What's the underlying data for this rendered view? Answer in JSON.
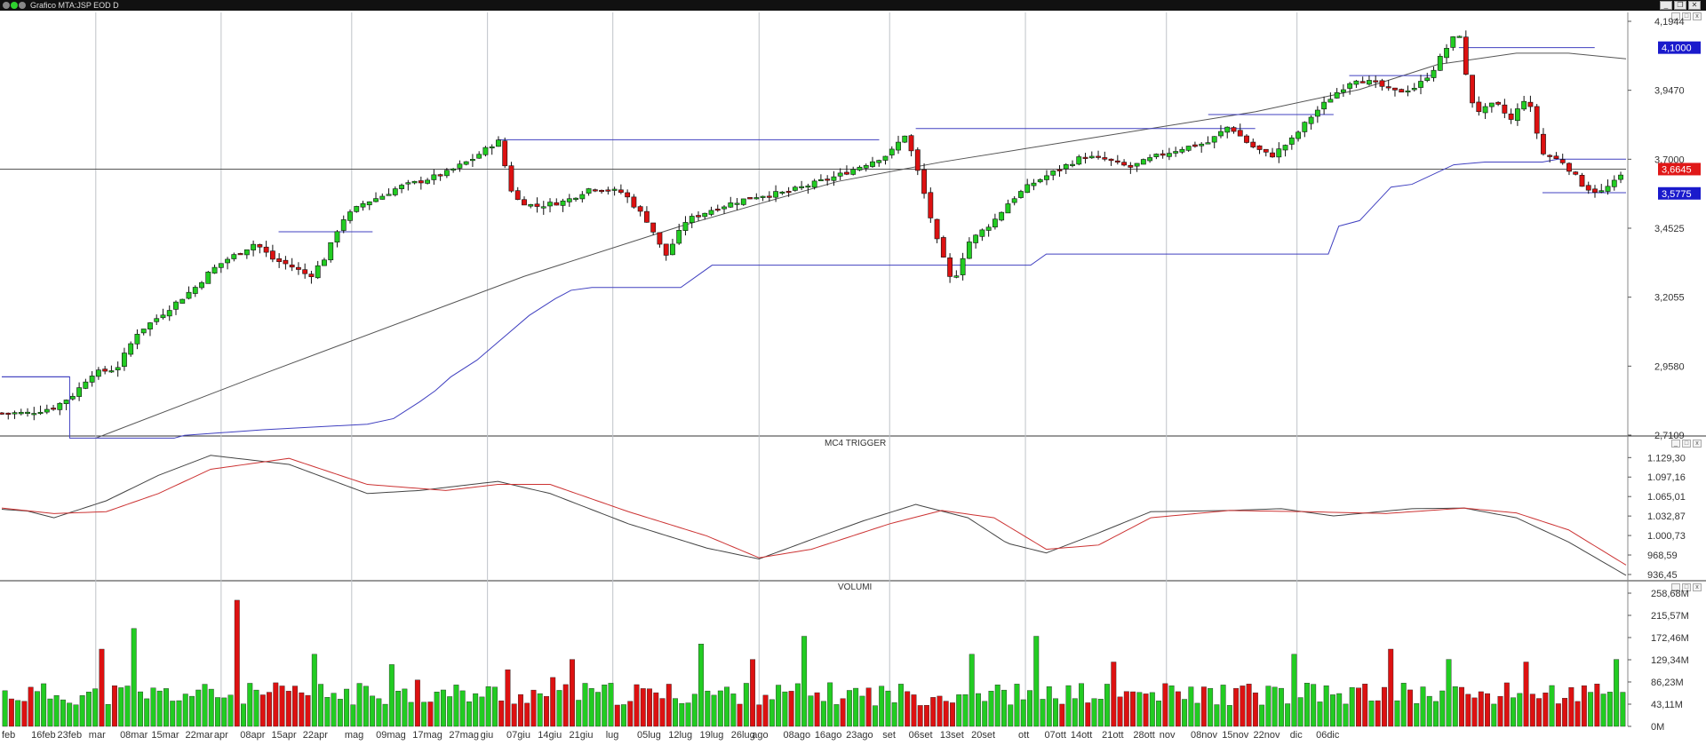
{
  "window": {
    "title": "Grafico MTA:JSP EOD D",
    "controls": [
      "_",
      "❐",
      "✕"
    ]
  },
  "panels": {
    "price": {
      "title": ""
    },
    "oscillator": {
      "title": "MC4 TRIGGER"
    },
    "volume": {
      "title": "VOLUMI"
    }
  },
  "colors": {
    "up_candle": "#22cc22",
    "down_candle": "#dd1111",
    "grid": "#bfc3c8",
    "avg_line": "#555555",
    "stop_line": "#4040c0",
    "trigger_line": "#444444",
    "signal_line": "#cc3333",
    "badge_blue": "#1a1acc",
    "badge_red": "#e01818"
  },
  "chart_data": [
    {
      "type": "candlestick",
      "name": "price",
      "y_ticks": [
        "4,1944",
        "3,9470",
        "3,7000",
        "3,4525",
        "3,2055",
        "2,9580",
        "2,7109"
      ],
      "ylim": [
        2.7109,
        4.1944
      ],
      "badges": [
        "4,1000",
        "3,6645",
        "3,5775"
      ],
      "badge_values": [
        4.1,
        3.6645,
        3.5775
      ],
      "current_price": 3.6645,
      "close_path": [
        [
          0,
          2.79
        ],
        [
          10,
          2.79
        ],
        [
          20,
          2.81
        ],
        [
          28,
          2.86
        ],
        [
          34,
          2.93
        ],
        [
          44,
          2.95
        ],
        [
          52,
          3.08
        ],
        [
          58,
          3.12
        ],
        [
          66,
          3.18
        ],
        [
          74,
          3.24
        ],
        [
          80,
          3.3
        ],
        [
          86,
          3.34
        ],
        [
          92,
          3.37
        ],
        [
          97,
          3.4
        ],
        [
          104,
          3.34
        ],
        [
          110,
          3.32
        ],
        [
          118,
          3.28
        ],
        [
          124,
          3.35
        ],
        [
          130,
          3.48
        ],
        [
          138,
          3.54
        ],
        [
          146,
          3.57
        ],
        [
          152,
          3.6
        ],
        [
          160,
          3.62
        ],
        [
          170,
          3.65
        ],
        [
          180,
          3.7
        ],
        [
          186,
          3.74
        ],
        [
          190,
          3.77
        ],
        [
          196,
          3.56
        ],
        [
          204,
          3.53
        ],
        [
          216,
          3.55
        ],
        [
          226,
          3.6
        ],
        [
          238,
          3.58
        ],
        [
          248,
          3.47
        ],
        [
          254,
          3.35
        ],
        [
          262,
          3.48
        ],
        [
          272,
          3.52
        ],
        [
          282,
          3.55
        ],
        [
          290,
          3.57
        ],
        [
          300,
          3.58
        ],
        [
          310,
          3.61
        ],
        [
          320,
          3.64
        ],
        [
          330,
          3.68
        ],
        [
          340,
          3.72
        ],
        [
          346,
          3.79
        ],
        [
          350,
          3.68
        ],
        [
          354,
          3.55
        ],
        [
          358,
          3.41
        ],
        [
          364,
          3.25
        ],
        [
          370,
          3.4
        ],
        [
          380,
          3.48
        ],
        [
          386,
          3.55
        ],
        [
          394,
          3.61
        ],
        [
          404,
          3.66
        ],
        [
          414,
          3.71
        ],
        [
          422,
          3.7
        ],
        [
          432,
          3.67
        ],
        [
          442,
          3.71
        ],
        [
          452,
          3.74
        ],
        [
          462,
          3.76
        ],
        [
          470,
          3.82
        ],
        [
          478,
          3.75
        ],
        [
          486,
          3.71
        ],
        [
          494,
          3.77
        ],
        [
          502,
          3.86
        ],
        [
          510,
          3.93
        ],
        [
          518,
          3.99
        ],
        [
          526,
          3.97
        ],
        [
          534,
          3.94
        ],
        [
          542,
          3.96
        ],
        [
          548,
          4.02
        ],
        [
          554,
          4.11
        ],
        [
          558,
          4.16
        ],
        [
          562,
          3.92
        ],
        [
          566,
          3.87
        ],
        [
          572,
          3.9
        ],
        [
          578,
          3.84
        ],
        [
          584,
          3.93
        ],
        [
          590,
          3.72
        ],
        [
          598,
          3.69
        ],
        [
          606,
          3.6
        ],
        [
          612,
          3.58
        ],
        [
          618,
          3.62
        ],
        [
          622,
          3.66
        ]
      ],
      "moving_average_path": [
        [
          36,
          2.7
        ],
        [
          100,
          2.93
        ],
        [
          200,
          3.28
        ],
        [
          260,
          3.46
        ],
        [
          320,
          3.62
        ],
        [
          360,
          3.69
        ],
        [
          420,
          3.78
        ],
        [
          480,
          3.87
        ],
        [
          520,
          3.95
        ],
        [
          550,
          4.04
        ],
        [
          580,
          4.08
        ],
        [
          600,
          4.08
        ],
        [
          622,
          4.06
        ]
      ],
      "stop_path": [
        [
          0,
          2.92
        ],
        [
          26,
          2.92
        ],
        [
          26,
          2.7
        ],
        [
          66,
          2.7
        ],
        [
          70,
          2.71
        ],
        [
          100,
          2.73
        ],
        [
          140,
          2.75
        ],
        [
          150,
          2.77
        ],
        [
          160,
          2.83
        ],
        [
          166,
          2.87
        ],
        [
          172,
          2.92
        ],
        [
          182,
          2.98
        ],
        [
          192,
          3.06
        ],
        [
          202,
          3.14
        ],
        [
          212,
          3.2
        ],
        [
          218,
          3.23
        ],
        [
          226,
          3.24
        ],
        [
          260,
          3.24
        ],
        [
          272,
          3.32
        ],
        [
          350,
          3.32
        ],
        [
          356,
          3.32
        ],
        [
          394,
          3.32
        ],
        [
          400,
          3.36
        ],
        [
          448,
          3.36
        ],
        [
          458,
          3.36
        ],
        [
          508,
          3.36
        ],
        [
          512,
          3.46
        ],
        [
          520,
          3.48
        ],
        [
          526,
          3.54
        ],
        [
          532,
          3.6
        ],
        [
          540,
          3.61
        ],
        [
          556,
          3.68
        ],
        [
          568,
          3.69
        ],
        [
          590,
          3.69
        ],
        [
          596,
          3.7
        ],
        [
          622,
          3.7
        ]
      ],
      "resistance_segments": [
        [
          [
            0,
            2.92
          ],
          [
            26,
            2.92
          ]
        ],
        [
          [
            106,
            3.44
          ],
          [
            142,
            3.44
          ]
        ],
        [
          [
            190,
            3.77
          ],
          [
            336,
            3.77
          ]
        ],
        [
          [
            350,
            3.81
          ],
          [
            480,
            3.81
          ]
        ],
        [
          [
            462,
            3.86
          ],
          [
            510,
            3.86
          ]
        ],
        [
          [
            516,
            4.0
          ],
          [
            548,
            4.0
          ]
        ],
        [
          [
            558,
            4.1
          ],
          [
            610,
            4.1
          ]
        ],
        [
          [
            590,
            3.58
          ],
          [
            622,
            3.58
          ]
        ]
      ]
    },
    {
      "type": "line",
      "name": "MC4 TRIGGER",
      "y_ticks": [
        "1.129,30",
        "1.097,16",
        "1.065,01",
        "1.032,87",
        "1.000,73",
        "968,59",
        "936,45"
      ],
      "ylim": [
        932,
        1140
      ],
      "series": [
        {
          "values": [
            [
              0,
              1044
            ],
            [
              10,
              1041
            ],
            [
              20,
              1030
            ],
            [
              40,
              1058
            ],
            [
              60,
              1100
            ],
            [
              80,
              1133
            ],
            [
              110,
              1118
            ],
            [
              140,
              1070
            ],
            [
              160,
              1075
            ],
            [
              190,
              1090
            ],
            [
              210,
              1070
            ],
            [
              240,
              1020
            ],
            [
              270,
              980
            ],
            [
              290,
              962
            ],
            [
              310,
              994
            ],
            [
              330,
              1025
            ],
            [
              350,
              1052
            ],
            [
              370,
              1030
            ],
            [
              385,
              988
            ],
            [
              400,
              972
            ],
            [
              420,
              1005
            ],
            [
              440,
              1040
            ],
            [
              470,
              1042
            ],
            [
              490,
              1045
            ],
            [
              510,
              1033
            ],
            [
              540,
              1045
            ],
            [
              560,
              1046
            ],
            [
              580,
              1030
            ],
            [
              600,
              990
            ],
            [
              622,
              935
            ]
          ]
        },
        {
          "values": [
            [
              0,
              1046
            ],
            [
              20,
              1037
            ],
            [
              40,
              1040
            ],
            [
              60,
              1070
            ],
            [
              80,
              1110
            ],
            [
              110,
              1128
            ],
            [
              140,
              1085
            ],
            [
              170,
              1075
            ],
            [
              190,
              1085
            ],
            [
              210,
              1085
            ],
            [
              240,
              1040
            ],
            [
              270,
              1000
            ],
            [
              290,
              964
            ],
            [
              310,
              978
            ],
            [
              340,
              1020
            ],
            [
              360,
              1042
            ],
            [
              380,
              1030
            ],
            [
              400,
              978
            ],
            [
              420,
              985
            ],
            [
              440,
              1030
            ],
            [
              470,
              1042
            ],
            [
              500,
              1040
            ],
            [
              530,
              1037
            ],
            [
              560,
              1046
            ],
            [
              580,
              1038
            ],
            [
              600,
              1010
            ],
            [
              622,
              952
            ]
          ]
        }
      ]
    },
    {
      "type": "bar",
      "name": "VOLUMI",
      "y_ticks": [
        "258,68M",
        "215,57M",
        "172,46M",
        "129,34M",
        "86,23M",
        "43,11M",
        "0M"
      ],
      "ylim": [
        0,
        258.68
      ],
      "bar_count": 252
    }
  ],
  "x_labels": [
    "feb",
    "16feb",
    "23feb",
    "mar",
    "08mar",
    "15mar",
    "22mar",
    "apr",
    "08apr",
    "15apr",
    "22apr",
    "mag",
    "09mag",
    "17mag",
    "27mag",
    "giu",
    "07giu",
    "14giu",
    "21giu",
    "lug",
    "05lug",
    "12lug",
    "19lug",
    "26lug",
    "ago",
    "08ago",
    "16ago",
    "23ago",
    "set",
    "06set",
    "13set",
    "20set",
    "ott",
    "07ott",
    "14ott",
    "21ott",
    "28ott",
    "nov",
    "08nov",
    "15nov",
    "22nov",
    "dic",
    "06dic"
  ],
  "x_label_positions": [
    0,
    14,
    24,
    36,
    48,
    60,
    73,
    84,
    94,
    106,
    118,
    134,
    146,
    160,
    174,
    186,
    196,
    208,
    220,
    234,
    246,
    258,
    270,
    282,
    290,
    302,
    314,
    326,
    340,
    350,
    362,
    374,
    392,
    402,
    412,
    424,
    436,
    446,
    458,
    470,
    482,
    496,
    506
  ]
}
